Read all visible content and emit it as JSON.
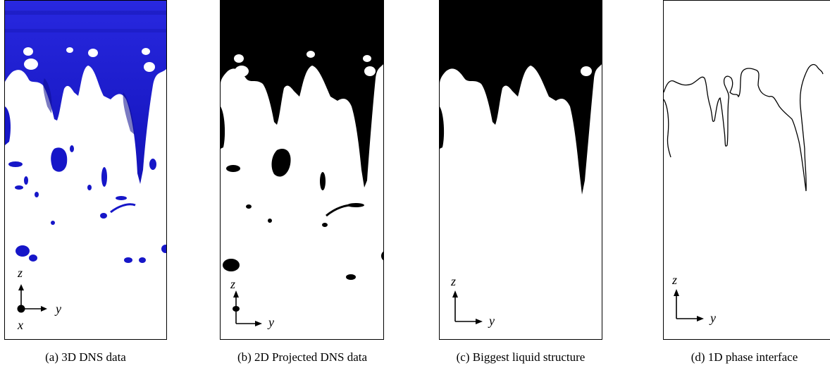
{
  "figure": {
    "panels": [
      {
        "id": "a",
        "caption": "(a) 3D DNS data",
        "axes": {
          "vertical": "z",
          "horizontal": "y",
          "out_of_plane": "x"
        }
      },
      {
        "id": "b",
        "caption": "(b) 2D Projected DNS data",
        "axes": {
          "vertical": "z",
          "horizontal": "y"
        }
      },
      {
        "id": "c",
        "caption": "(c) Biggest liquid structure",
        "axes": {
          "vertical": "z",
          "horizontal": "y"
        }
      },
      {
        "id": "d",
        "caption": "(d) 1D phase interface",
        "axes": {
          "vertical": "z",
          "horizontal": "y"
        }
      }
    ],
    "colors": {
      "liquid_3d": "#1a1ad0",
      "liquid_2d": "#000000",
      "interface_line": "#000000",
      "background": "#ffffff"
    }
  }
}
